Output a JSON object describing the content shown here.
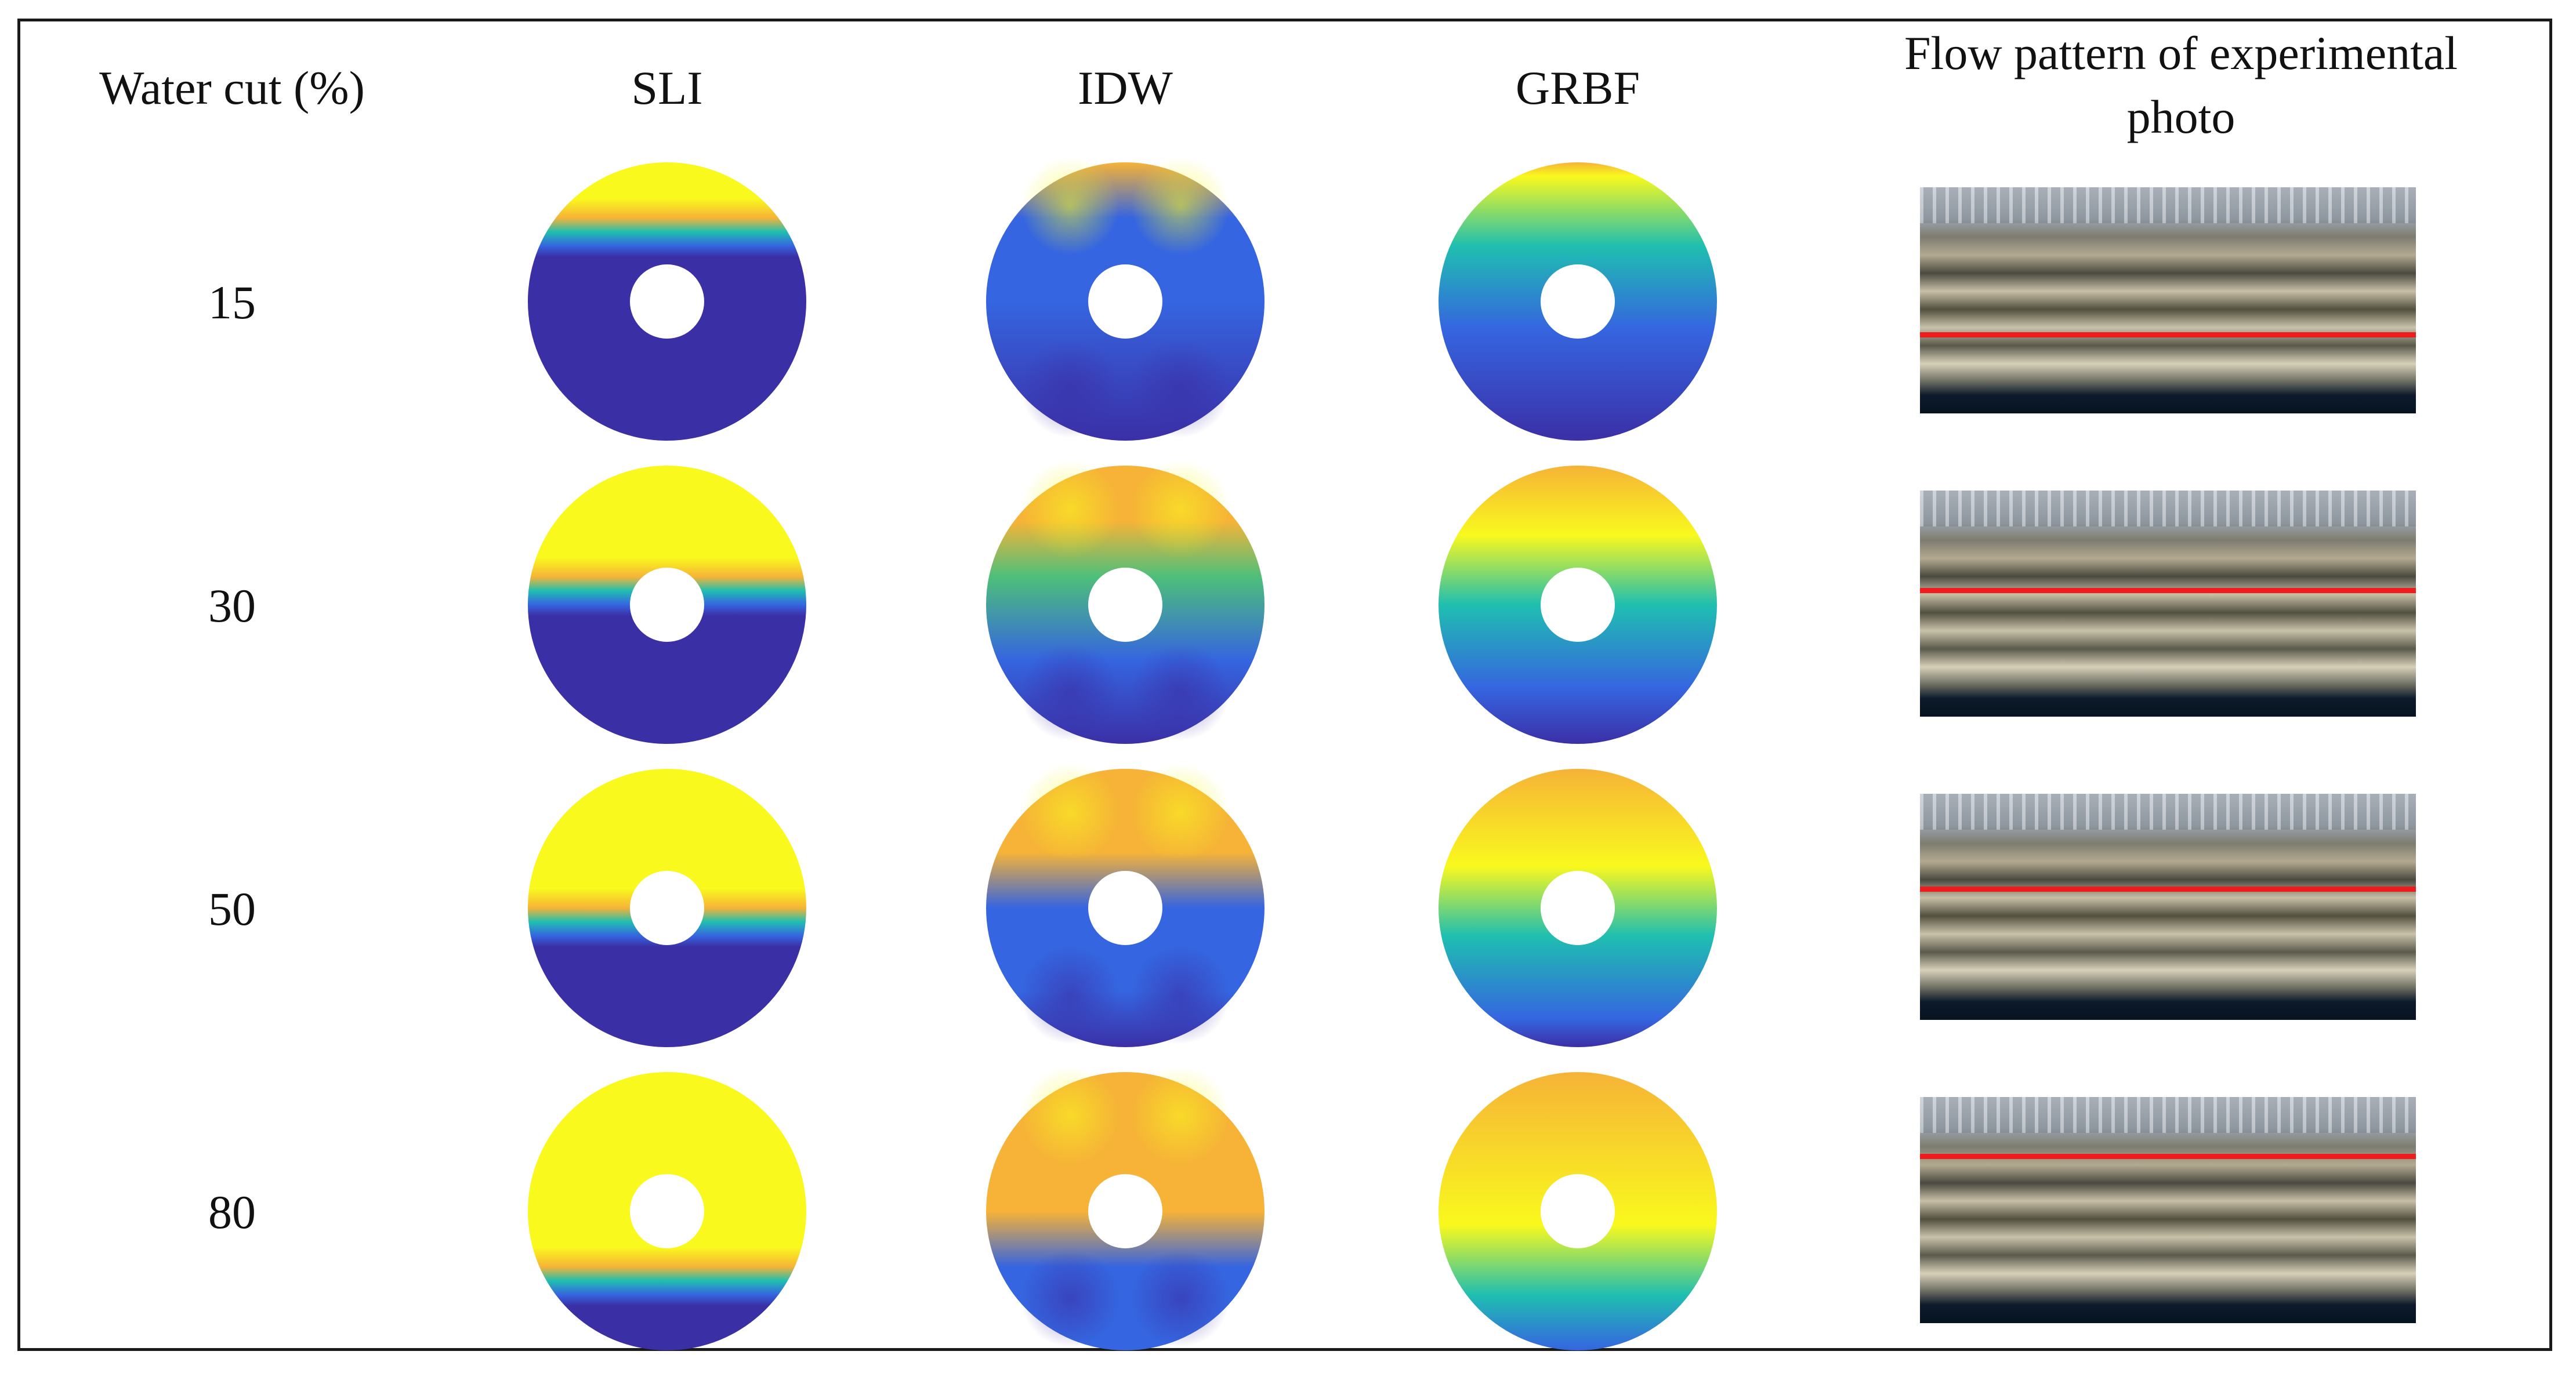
{
  "headers": {
    "water_cut": "Water cut (%)",
    "sli": "SLI",
    "idw": "IDW",
    "grbf": "GRBF",
    "photo_line1": "Flow pattern of experimental",
    "photo_line2": "photo"
  },
  "rows": [
    {
      "water_cut": "15",
      "sli_interface": 0.75,
      "photo_interface": 0.64
    },
    {
      "water_cut": "30",
      "sli_interface": 0.55,
      "photo_interface": 0.43
    },
    {
      "water_cut": "50",
      "sli_interface": 0.45,
      "photo_interface": 0.41
    },
    {
      "water_cut": "80",
      "sli_interface": 0.25,
      "photo_interface": 0.25
    }
  ],
  "colors": {
    "yellow": "#f9f91d",
    "orange": "#f6b337",
    "teal": "#1fbfb0",
    "green": "#4dbf7a",
    "blue": "#3565e0",
    "dark_blue": "#3b2fa6"
  }
}
